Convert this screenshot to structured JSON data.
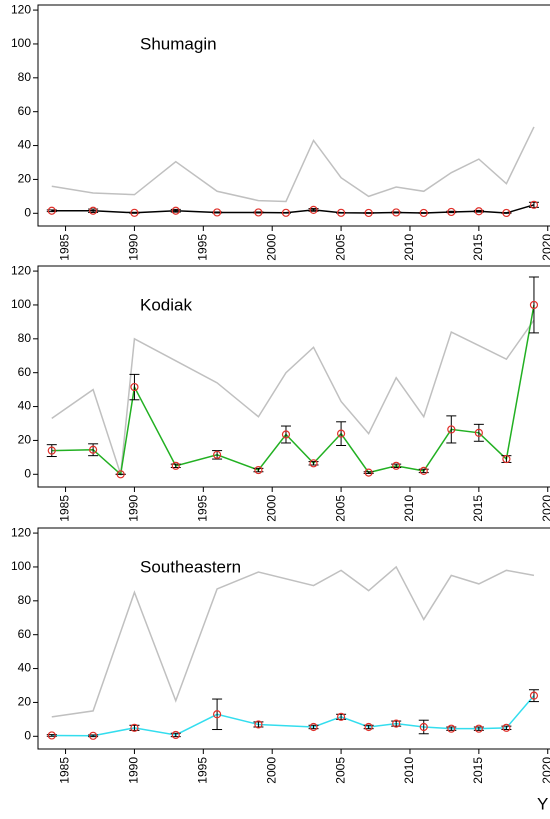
{
  "chart_data": [
    {
      "type": "line",
      "title": "Shumagin",
      "x": [
        1984,
        1987,
        1990,
        1993,
        1996,
        1999,
        2001,
        2003,
        2005,
        2007,
        2009,
        2011,
        2013,
        2015,
        2017,
        2019
      ],
      "xlim": [
        1983,
        2020.6
      ],
      "xticks": [
        1985,
        1990,
        1995,
        2000,
        2005,
        2010,
        2015,
        2020
      ],
      "ylim": [
        -7.5,
        123
      ],
      "yticks": [
        0,
        20,
        40,
        60,
        80,
        100,
        120
      ],
      "grid": false,
      "marker_color": "#e0302a",
      "series": [
        {
          "color": "#c0c0c0",
          "values": [
            16,
            12,
            11,
            30.5,
            13,
            7.5,
            7,
            43,
            21,
            10,
            15.5,
            13,
            24,
            32,
            17.5,
            51
          ]
        },
        {
          "color": "#000000",
          "values": [
            1.5,
            1.5,
            0.3,
            1.5,
            0.5,
            0.5,
            0.3,
            2,
            0.3,
            0.2,
            0.5,
            0.2,
            0.8,
            1.2,
            0.2,
            5
          ],
          "errors": [
            0.5,
            1,
            0.3,
            0.8,
            0.3,
            0.3,
            0.2,
            0.8,
            0.2,
            0.2,
            0.3,
            0.2,
            0.4,
            0.5,
            0.2,
            1.5
          ]
        }
      ]
    },
    {
      "type": "line",
      "title": "Kodiak",
      "x": [
        1984,
        1987,
        1989,
        1990,
        1993,
        1996,
        1999,
        2001,
        2003,
        2005,
        2007,
        2009,
        2011,
        2013,
        2015,
        2017,
        2019
      ],
      "xlim": [
        1983,
        2020.6
      ],
      "xticks": [
        1985,
        1990,
        1995,
        2000,
        2005,
        2010,
        2015,
        2020
      ],
      "ylim": [
        -7.5,
        123
      ],
      "yticks": [
        0,
        20,
        40,
        60,
        80,
        100,
        120
      ],
      "grid": false,
      "marker_color": "#e0302a",
      "series": [
        {
          "color": "#c0c0c0",
          "values": [
            33,
            50,
            0,
            80,
            67,
            54,
            34,
            60,
            75,
            43,
            24,
            57,
            34,
            84,
            76,
            68,
            91
          ]
        },
        {
          "color": "#22b022",
          "values": [
            14,
            14.5,
            0,
            51.5,
            5,
            11.5,
            2.5,
            23.5,
            6.5,
            24,
            1,
            5,
            2,
            26.5,
            24.5,
            9,
            100
          ],
          "errors": [
            3.5,
            3.5,
            0,
            7.5,
            1,
            2.5,
            1,
            5,
            1,
            7,
            0.5,
            1,
            1,
            8,
            5,
            2,
            16.5
          ]
        }
      ]
    },
    {
      "type": "line",
      "title": "Southeastern",
      "xlabel": "Y",
      "x": [
        1984,
        1987,
        1990,
        1993,
        1996,
        1999,
        2003,
        2005,
        2007,
        2009,
        2011,
        2013,
        2015,
        2017,
        2019
      ],
      "xlim": [
        1983,
        2020.6
      ],
      "xticks": [
        1985,
        1990,
        1995,
        2000,
        2005,
        2010,
        2015,
        2020
      ],
      "ylim": [
        -7.5,
        123
      ],
      "yticks": [
        0,
        20,
        40,
        60,
        80,
        100,
        120
      ],
      "grid": false,
      "marker_color": "#e0302a",
      "series": [
        {
          "color": "#c0c0c0",
          "values": [
            11.5,
            15,
            85,
            21,
            87,
            97,
            89,
            98,
            86,
            100,
            69,
            95,
            90,
            98,
            95
          ]
        },
        {
          "color": "#33ddee",
          "values": [
            0.5,
            0.3,
            5,
            0.8,
            13,
            7,
            5.5,
            11.5,
            5.5,
            7.5,
            5.5,
            4.5,
            4.5,
            5,
            24
          ],
          "errors": [
            0.5,
            0.5,
            1.5,
            1,
            9,
            1.5,
            1,
            1.5,
            1,
            1.5,
            4,
            1,
            1,
            1,
            3.5
          ]
        }
      ]
    }
  ]
}
